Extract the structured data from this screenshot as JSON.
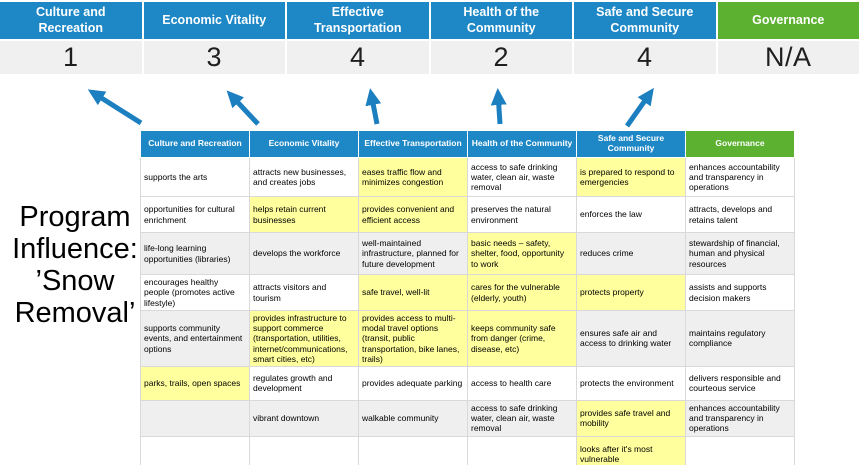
{
  "title": {
    "lines": [
      "Program",
      "Influence:",
      "’Snow",
      "Removal’"
    ]
  },
  "colors": {
    "header_blue": "#1e88c7",
    "header_green": "#5cb130",
    "arrow_blue": "#1c7fc0",
    "score_bg": "#f0f0f0",
    "row_band_gray": "#efefef",
    "highlight_yellow": "#ffff9e"
  },
  "scorecards": [
    {
      "label": "Culture and Recreation",
      "score": "1",
      "color": "blue"
    },
    {
      "label": "Economic Vitality",
      "score": "3",
      "color": "blue"
    },
    {
      "label": "Effective Transportation",
      "score": "4",
      "color": "blue"
    },
    {
      "label": "Health of the Community",
      "score": "2",
      "color": "blue"
    },
    {
      "label": "Safe and Secure Community",
      "score": "4",
      "color": "blue"
    },
    {
      "label": "Governance",
      "score": "N/A",
      "color": "green"
    }
  ],
  "table": {
    "headers": [
      {
        "label": "Culture and Recreation",
        "color": "blue"
      },
      {
        "label": "Economic Vitality",
        "color": "blue"
      },
      {
        "label": "Effective Transportation",
        "color": "blue"
      },
      {
        "label": "Health of the Community",
        "color": "blue"
      },
      {
        "label": "Safe and Secure Community",
        "color": "blue"
      },
      {
        "label": "Governance",
        "color": "green"
      }
    ],
    "rows": [
      [
        {
          "text": "supports the arts",
          "highlight": false
        },
        {
          "text": "attracts new businesses, and creates jobs",
          "highlight": false
        },
        {
          "text": "eases traffic flow and minimizes congestion",
          "highlight": true
        },
        {
          "text": "access to safe drinking water, clean air, waste removal",
          "highlight": false
        },
        {
          "text": "is prepared to respond to emergencies",
          "highlight": true
        },
        {
          "text": "enhances accountability and transparency in operations",
          "highlight": false
        }
      ],
      [
        {
          "text": "opportunities for cultural enrichment",
          "highlight": false
        },
        {
          "text": "helps retain current businesses",
          "highlight": true
        },
        {
          "text": "provides convenient and efficient access",
          "highlight": true
        },
        {
          "text": "preserves the natural environment",
          "highlight": false
        },
        {
          "text": "enforces the law",
          "highlight": false
        },
        {
          "text": "attracts, develops and retains talent",
          "highlight": false
        }
      ],
      [
        {
          "text": "life-long learning opportunities (libraries)",
          "highlight": false
        },
        {
          "text": "develops the workforce",
          "highlight": false
        },
        {
          "text": "well-maintained infrastructure, planned for future development",
          "highlight": false
        },
        {
          "text": "basic needs – safety, shelter, food, opportunity to work",
          "highlight": true
        },
        {
          "text": "reduces crime",
          "highlight": false
        },
        {
          "text": "stewardship of financial, human and physical resources",
          "highlight": false
        }
      ],
      [
        {
          "text": "encourages healthy people (promotes active lifestyle)",
          "highlight": false
        },
        {
          "text": "attracts visitors and tourism",
          "highlight": false
        },
        {
          "text": "safe travel, well-lit",
          "highlight": true
        },
        {
          "text": "cares for the vulnerable (elderly, youth)",
          "highlight": true
        },
        {
          "text": "protects property",
          "highlight": true
        },
        {
          "text": "assists and supports decision makers",
          "highlight": false
        }
      ],
      [
        {
          "text": "supports community events, and entertainment options",
          "highlight": false
        },
        {
          "text": "provides infrastructure to support commerce (transportation, utilities, internet/communications, smart cities, etc)",
          "highlight": true
        },
        {
          "text": "provides access to multi-modal travel options (transit, public transportation, bike lanes, trails)",
          "highlight": true
        },
        {
          "text": "keeps community safe from danger (crime, disease, etc)",
          "highlight": true
        },
        {
          "text": "ensures safe air and access to drinking water",
          "highlight": false
        },
        {
          "text": "maintains regulatory compliance",
          "highlight": false
        }
      ],
      [
        {
          "text": "parks, trails, open spaces",
          "highlight": true
        },
        {
          "text": "regulates growth and development",
          "highlight": false
        },
        {
          "text": "provides adequate parking",
          "highlight": false
        },
        {
          "text": "access to health care",
          "highlight": false
        },
        {
          "text": "protects the environment",
          "highlight": false
        },
        {
          "text": "delivers responsible and courteous service",
          "highlight": false
        }
      ],
      [
        {
          "text": "",
          "highlight": false
        },
        {
          "text": "vibrant downtown",
          "highlight": false
        },
        {
          "text": "walkable community",
          "highlight": false
        },
        {
          "text": "access to safe drinking water, clean air, waste removal",
          "highlight": false
        },
        {
          "text": "provides safe travel and mobility",
          "highlight": true
        },
        {
          "text": "enhances accountability and transparency in operations",
          "highlight": false
        }
      ],
      [
        {
          "text": "",
          "highlight": false
        },
        {
          "text": "",
          "highlight": false
        },
        {
          "text": "",
          "highlight": false
        },
        {
          "text": "",
          "highlight": false
        },
        {
          "text": "looks after it's most vulnerable",
          "highlight": true
        },
        {
          "text": "",
          "highlight": false
        }
      ]
    ]
  }
}
